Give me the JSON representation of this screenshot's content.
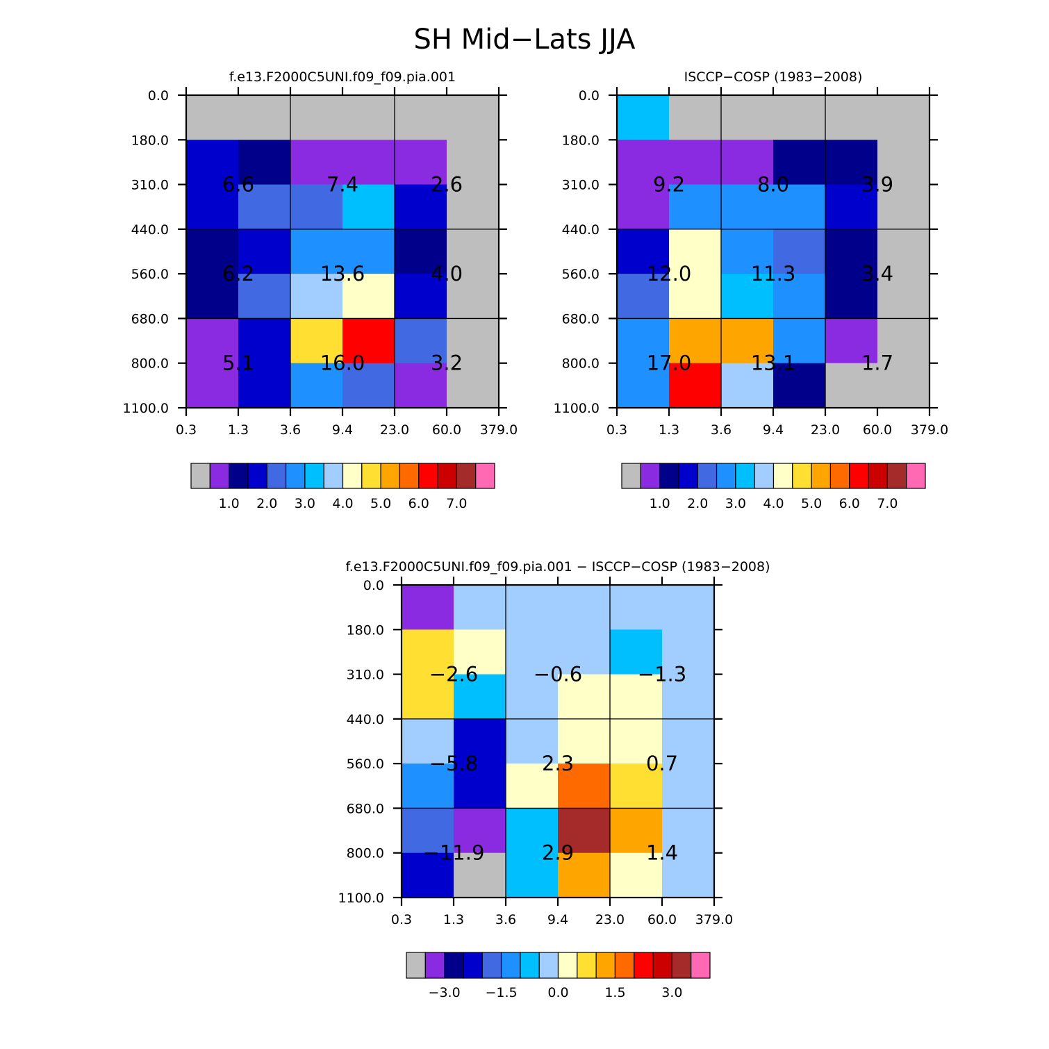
{
  "figure_title": "SH Mid−Lats JJA",
  "chart_data": [
    {
      "type": "heatmap",
      "title": "f.e13.F2000C5UNI.f09_f09.pia.001",
      "x_ticks": [
        "0.3",
        "1.3",
        "3.6",
        "9.4",
        "23.0",
        "60.0",
        "379.0"
      ],
      "y_ticks": [
        "0.0",
        "180.0",
        "310.0",
        "440.0",
        "560.0",
        "680.0",
        "800.0",
        "1100.0"
      ],
      "cell_colors": [
        [
          "#BEBEBE",
          "#BEBEBE",
          "#BEBEBE",
          "#BEBEBE",
          "#BEBEBE",
          "#BEBEBE"
        ],
        [
          "#0000CD",
          "#00008B",
          "#8A2BE2",
          "#8A2BE2",
          "#8A2BE2",
          "#BEBEBE"
        ],
        [
          "#0000CD",
          "#4169E1",
          "#4169E1",
          "#00BFFF",
          "#0000CD",
          "#BEBEBE"
        ],
        [
          "#00008B",
          "#0000CD",
          "#1E90FF",
          "#1E90FF",
          "#00008B",
          "#BEBEBE"
        ],
        [
          "#00008B",
          "#4169E1",
          "#A2CDFF",
          "#FFFFC8",
          "#0000CD",
          "#BEBEBE"
        ],
        [
          "#8A2BE2",
          "#0000CD",
          "#FFE032",
          "#FF0000",
          "#4169E1",
          "#BEBEBE"
        ],
        [
          "#8A2BE2",
          "#0000CD",
          "#1E90FF",
          "#4169E1",
          "#8A2BE2",
          "#BEBEBE"
        ]
      ],
      "block_values": [
        [
          "6.6",
          "7.4",
          "2.6"
        ],
        [
          "6.2",
          "13.6",
          "4.0"
        ],
        [
          "5.1",
          "16.0",
          "3.2"
        ]
      ],
      "colorbar": {
        "colors": [
          "#BEBEBE",
          "#8A2BE2",
          "#00008B",
          "#0000CD",
          "#4169E1",
          "#1E90FF",
          "#00BFFF",
          "#A2CDFF",
          "#FFFFC8",
          "#FFE032",
          "#FFA500",
          "#FF6A00",
          "#FF0000",
          "#CD0000",
          "#A52A2A",
          "#FF69B4"
        ],
        "labels": [
          "1.0",
          "2.0",
          "3.0",
          "4.0",
          "5.0",
          "6.0",
          "7.0"
        ],
        "label_start_boundary": 2
      }
    },
    {
      "type": "heatmap",
      "title": "ISCCP−COSP (1983−2008)",
      "x_ticks": [
        "0.3",
        "1.3",
        "3.6",
        "9.4",
        "23.0",
        "60.0",
        "379.0"
      ],
      "y_ticks": [
        "0.0",
        "180.0",
        "310.0",
        "440.0",
        "560.0",
        "680.0",
        "800.0",
        "1100.0"
      ],
      "cell_colors": [
        [
          "#00BFFF",
          "#BEBEBE",
          "#BEBEBE",
          "#BEBEBE",
          "#BEBEBE",
          "#BEBEBE"
        ],
        [
          "#8A2BE2",
          "#8A2BE2",
          "#8A2BE2",
          "#00008B",
          "#00008B",
          "#BEBEBE"
        ],
        [
          "#8A2BE2",
          "#1E90FF",
          "#1E90FF",
          "#1E90FF",
          "#0000CD",
          "#BEBEBE"
        ],
        [
          "#0000CD",
          "#FFFFC8",
          "#1E90FF",
          "#4169E1",
          "#00008B",
          "#BEBEBE"
        ],
        [
          "#4169E1",
          "#FFFFC8",
          "#00BFFF",
          "#1E90FF",
          "#00008B",
          "#BEBEBE"
        ],
        [
          "#1E90FF",
          "#FFA500",
          "#FFA500",
          "#1E90FF",
          "#8A2BE2",
          "#BEBEBE"
        ],
        [
          "#1E90FF",
          "#FF0000",
          "#A2CDFF",
          "#00008B",
          "#BEBEBE",
          "#BEBEBE"
        ]
      ],
      "block_values": [
        [
          "9.2",
          "8.0",
          "3.9"
        ],
        [
          "12.0",
          "11.3",
          "3.4"
        ],
        [
          "17.0",
          "13.1",
          "1.7"
        ]
      ],
      "colorbar": {
        "colors": [
          "#BEBEBE",
          "#8A2BE2",
          "#00008B",
          "#0000CD",
          "#4169E1",
          "#1E90FF",
          "#00BFFF",
          "#A2CDFF",
          "#FFFFC8",
          "#FFE032",
          "#FFA500",
          "#FF6A00",
          "#FF0000",
          "#CD0000",
          "#A52A2A",
          "#FF69B4"
        ],
        "labels": [
          "1.0",
          "2.0",
          "3.0",
          "4.0",
          "5.0",
          "6.0",
          "7.0"
        ],
        "label_start_boundary": 2
      }
    },
    {
      "type": "heatmap",
      "title": "f.e13.F2000C5UNI.f09_f09.pia.001 − ISCCP−COSP (1983−2008)",
      "x_ticks": [
        "0.3",
        "1.3",
        "3.6",
        "9.4",
        "23.0",
        "60.0",
        "379.0"
      ],
      "y_ticks": [
        "0.0",
        "180.0",
        "310.0",
        "440.0",
        "560.0",
        "680.0",
        "800.0",
        "1100.0"
      ],
      "cell_colors": [
        [
          "#8A2BE2",
          "#A2CDFF",
          "#A2CDFF",
          "#A2CDFF",
          "#A2CDFF",
          "#A2CDFF"
        ],
        [
          "#FFE032",
          "#FFFFC8",
          "#A2CDFF",
          "#A2CDFF",
          "#00BFFF",
          "#A2CDFF"
        ],
        [
          "#FFE032",
          "#00BFFF",
          "#A2CDFF",
          "#FFFFC8",
          "#FFFFC8",
          "#A2CDFF"
        ],
        [
          "#A2CDFF",
          "#0000CD",
          "#A2CDFF",
          "#FFFFC8",
          "#FFFFC8",
          "#A2CDFF"
        ],
        [
          "#1E90FF",
          "#0000CD",
          "#FFFFC8",
          "#FF6A00",
          "#FFE032",
          "#A2CDFF"
        ],
        [
          "#4169E1",
          "#8A2BE2",
          "#00BFFF",
          "#A52A2A",
          "#FFA500",
          "#A2CDFF"
        ],
        [
          "#0000CD",
          "#BEBEBE",
          "#00BFFF",
          "#FFA500",
          "#FFFFC8",
          "#A2CDFF"
        ]
      ],
      "block_values": [
        [
          "−2.6",
          "−0.6",
          "−1.3"
        ],
        [
          "−5.8",
          "2.3",
          "0.7"
        ],
        [
          "−11.9",
          "2.9",
          "1.4"
        ]
      ],
      "colorbar": {
        "colors": [
          "#BEBEBE",
          "#8A2BE2",
          "#00008B",
          "#0000CD",
          "#4169E1",
          "#1E90FF",
          "#00BFFF",
          "#A2CDFF",
          "#FFFFC8",
          "#FFE032",
          "#FFA500",
          "#FF6A00",
          "#FF0000",
          "#CD0000",
          "#A52A2A",
          "#FF69B4"
        ],
        "labels": [
          "−3.0",
          "−1.5",
          "0.0",
          "1.5",
          "3.0"
        ],
        "label_start_boundary": 2
      }
    }
  ]
}
